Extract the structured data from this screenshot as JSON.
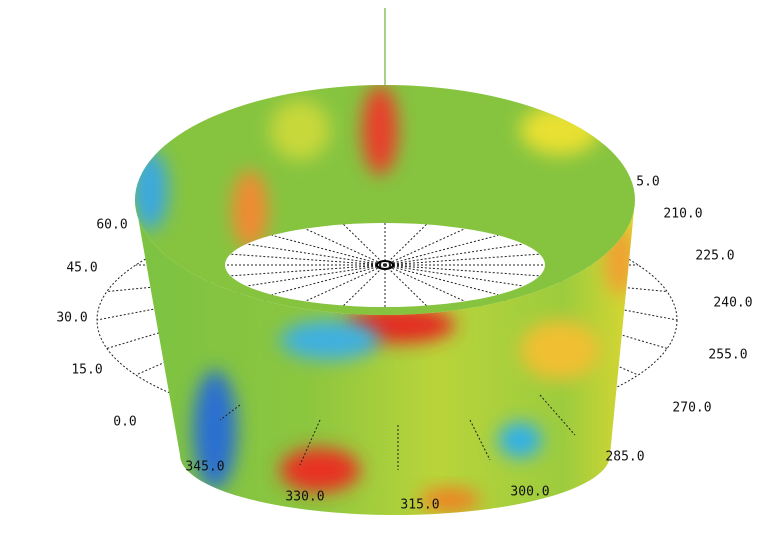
{
  "angle_labels": [
    "60.0",
    "45.0",
    "30.0",
    "15.0",
    "0.0",
    "345.0",
    "330.0",
    "315.0",
    "300.0",
    "285.0",
    "270.0",
    "255.0",
    "240.0",
    "225.0",
    "210.0",
    "5.0"
  ]
}
